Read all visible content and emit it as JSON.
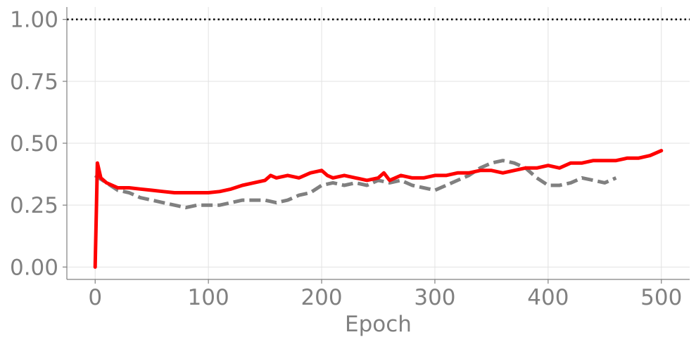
{
  "chart_data": {
    "type": "line",
    "xlabel": "Epoch",
    "ylabel": "",
    "xlim": [
      -25,
      525
    ],
    "ylim": [
      -0.05,
      1.05
    ],
    "x_ticks": [
      0,
      100,
      200,
      300,
      400,
      500
    ],
    "x_tick_labels": [
      "0",
      "100",
      "200",
      "300",
      "400",
      "500"
    ],
    "y_ticks": [
      0.0,
      0.25,
      0.5,
      0.75,
      1.0
    ],
    "y_tick_labels": [
      "0.00",
      "0.25",
      "0.50",
      "0.75",
      "1.00"
    ],
    "grid": true,
    "reference_line": {
      "y": 1.0,
      "style": "dotted",
      "color": "#000000"
    },
    "series": [
      {
        "style": "solid",
        "color": "#ff0000",
        "x": [
          0,
          2,
          5,
          10,
          20,
          30,
          40,
          50,
          60,
          70,
          80,
          90,
          100,
          110,
          120,
          130,
          140,
          150,
          155,
          160,
          170,
          180,
          190,
          200,
          205,
          210,
          220,
          230,
          240,
          250,
          255,
          260,
          270,
          280,
          290,
          300,
          310,
          320,
          330,
          340,
          350,
          360,
          370,
          380,
          390,
          400,
          410,
          420,
          430,
          440,
          450,
          460,
          470,
          480,
          490,
          500
        ],
        "y": [
          0.0,
          0.42,
          0.36,
          0.34,
          0.32,
          0.32,
          0.315,
          0.31,
          0.305,
          0.3,
          0.3,
          0.3,
          0.3,
          0.305,
          0.315,
          0.33,
          0.34,
          0.35,
          0.37,
          0.36,
          0.37,
          0.36,
          0.38,
          0.39,
          0.37,
          0.36,
          0.37,
          0.36,
          0.35,
          0.36,
          0.38,
          0.35,
          0.37,
          0.36,
          0.36,
          0.37,
          0.37,
          0.38,
          0.38,
          0.39,
          0.39,
          0.38,
          0.39,
          0.4,
          0.4,
          0.41,
          0.4,
          0.42,
          0.42,
          0.43,
          0.43,
          0.43,
          0.44,
          0.44,
          0.45,
          0.47
        ]
      },
      {
        "style": "dashed",
        "color": "#808080",
        "x": [
          0,
          10,
          20,
          30,
          40,
          50,
          60,
          70,
          80,
          90,
          100,
          110,
          120,
          130,
          140,
          150,
          160,
          170,
          180,
          190,
          200,
          210,
          220,
          230,
          240,
          250,
          260,
          270,
          280,
          290,
          300,
          310,
          320,
          330,
          340,
          350,
          360,
          370,
          380,
          390,
          400,
          410,
          420,
          430,
          440,
          450,
          460
        ],
        "y": [
          0.37,
          0.34,
          0.31,
          0.3,
          0.28,
          0.27,
          0.26,
          0.25,
          0.24,
          0.25,
          0.25,
          0.25,
          0.26,
          0.27,
          0.27,
          0.27,
          0.26,
          0.27,
          0.29,
          0.3,
          0.33,
          0.34,
          0.33,
          0.34,
          0.33,
          0.35,
          0.34,
          0.35,
          0.33,
          0.32,
          0.31,
          0.33,
          0.35,
          0.37,
          0.4,
          0.42,
          0.43,
          0.42,
          0.4,
          0.36,
          0.33,
          0.33,
          0.34,
          0.36,
          0.35,
          0.34,
          0.36
        ]
      }
    ]
  }
}
